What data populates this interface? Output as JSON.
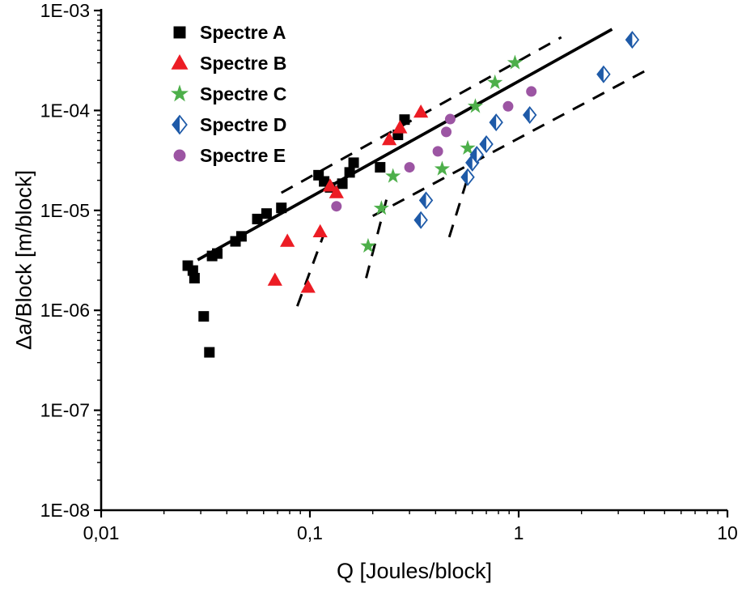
{
  "chart_data": {
    "type": "scatter",
    "title": "",
    "xlabel": "Q  [Joules/block]",
    "ylabel": "Δa/Block  [m/block]",
    "x_scale": "log",
    "y_scale": "log",
    "xlim": [
      0.01,
      10
    ],
    "ylim": [
      1e-08,
      0.001
    ],
    "x_tick_labels": [
      "0,01",
      "0,1",
      "1",
      "10"
    ],
    "y_tick_labels": [
      "1E-03",
      "1E-04",
      "1E-05",
      "1E-06",
      "1E-07",
      "1E-08"
    ],
    "grid": false,
    "legend_position": "top-left-inside",
    "series": [
      {
        "name": "Spectre A",
        "marker": "square",
        "color": "#000000",
        "points": [
          [
            0.026,
            2.8e-06
          ],
          [
            0.0275,
            2.5e-06
          ],
          [
            0.028,
            2.1e-06
          ],
          [
            0.031,
            8.7e-07
          ],
          [
            0.033,
            3.8e-07
          ],
          [
            0.034,
            3.5e-06
          ],
          [
            0.036,
            3.7e-06
          ],
          [
            0.044,
            4.9e-06
          ],
          [
            0.047,
            5.5e-06
          ],
          [
            0.056,
            8.2e-06
          ],
          [
            0.062,
            9.3e-06
          ],
          [
            0.073,
            1.06e-05
          ],
          [
            0.11,
            2.25e-05
          ],
          [
            0.117,
            1.95e-05
          ],
          [
            0.125,
            1.7e-05
          ],
          [
            0.143,
            1.85e-05
          ],
          [
            0.155,
            2.4e-05
          ],
          [
            0.162,
            3e-05
          ],
          [
            0.217,
            2.7e-05
          ],
          [
            0.264,
            5.7e-05
          ],
          [
            0.284,
            8.1e-05
          ]
        ]
      },
      {
        "name": "Spectre B",
        "marker": "triangle",
        "color": "#ec1c24",
        "points": [
          [
            0.068,
            2e-06
          ],
          [
            0.078,
            4.9e-06
          ],
          [
            0.098,
            1.7e-06
          ],
          [
            0.112,
            6.1e-06
          ],
          [
            0.125,
            1.75e-05
          ],
          [
            0.134,
            1.5e-05
          ],
          [
            0.24,
            5.1e-05
          ],
          [
            0.27,
            6.7e-05
          ],
          [
            0.34,
            9.6e-05
          ]
        ]
      },
      {
        "name": "Spectre C",
        "marker": "star",
        "color": "#4daf4a",
        "points": [
          [
            0.19,
            4.4e-06
          ],
          [
            0.22,
            1.05e-05
          ],
          [
            0.25,
            2.2e-05
          ],
          [
            0.43,
            2.6e-05
          ],
          [
            0.57,
            4.2e-05
          ],
          [
            0.62,
            0.00011
          ],
          [
            0.77,
            0.00019
          ],
          [
            0.96,
            0.0003
          ]
        ]
      },
      {
        "name": "Spectre D",
        "marker": "half-diamond",
        "color": "#1e5aa8",
        "points": [
          [
            0.34,
            8e-06
          ],
          [
            0.36,
            1.26e-05
          ],
          [
            0.57,
            2.15e-05
          ],
          [
            0.6,
            3e-05
          ],
          [
            0.63,
            3.6e-05
          ],
          [
            0.7,
            4.6e-05
          ],
          [
            0.78,
            7.6e-05
          ],
          [
            1.13,
            9e-05
          ],
          [
            2.55,
            0.00023
          ],
          [
            3.5,
            0.00051
          ]
        ]
      },
      {
        "name": "Spectre E",
        "marker": "circle",
        "color": "#9c55a3",
        "points": [
          [
            0.134,
            1.1e-05
          ],
          [
            0.3,
            2.7e-05
          ],
          [
            0.41,
            3.9e-05
          ],
          [
            0.45,
            6.1e-05
          ],
          [
            0.47,
            8.2e-05
          ],
          [
            0.89,
            0.00011
          ],
          [
            1.15,
            0.000155
          ]
        ]
      }
    ],
    "fit_lines": [
      {
        "name": "main-trend",
        "style": "solid",
        "color": "#000000",
        "points": [
          [
            0.029,
            3.2e-06
          ],
          [
            2.8,
            0.00065
          ]
        ]
      },
      {
        "name": "upper-envelope",
        "style": "dashed",
        "color": "#000000",
        "points": [
          [
            0.073,
            1.5e-05
          ],
          [
            1.6,
            0.00054
          ]
        ]
      },
      {
        "name": "lower-envelope",
        "style": "dashed",
        "color": "#000000",
        "points": [
          [
            0.2,
            8.8e-06
          ],
          [
            4.2,
            0.00026
          ]
        ]
      },
      {
        "name": "branch-spectre-b",
        "style": "dashed",
        "color": "#000000",
        "points": [
          [
            0.087,
            1.1e-06
          ],
          [
            0.116,
            5.6e-06
          ]
        ]
      },
      {
        "name": "branch-spectre-c",
        "style": "dashed",
        "color": "#000000",
        "points": [
          [
            0.186,
            2.1e-06
          ],
          [
            0.234,
            1.35e-05
          ]
        ]
      },
      {
        "name": "branch-spectre-d",
        "style": "dashed",
        "color": "#000000",
        "points": [
          [
            0.465,
            5.4e-06
          ],
          [
            0.58,
            2.4e-05
          ]
        ]
      }
    ]
  }
}
